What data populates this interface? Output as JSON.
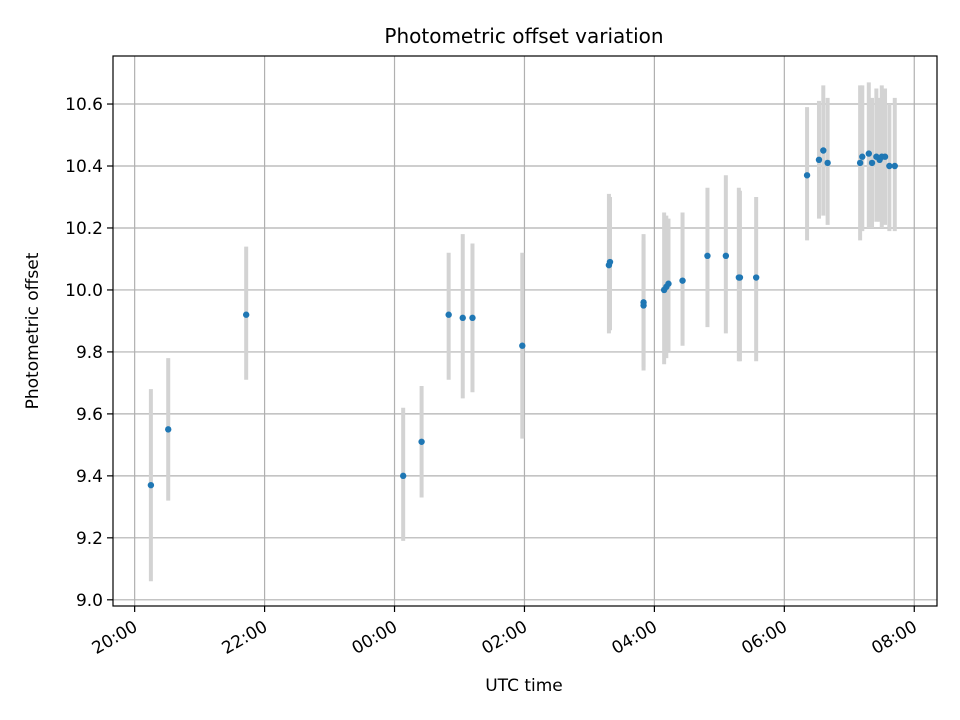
{
  "chart_data": {
    "type": "scatter",
    "title": "Photometric offset variation",
    "xlabel": "UTC time",
    "ylabel": "Photometric offset",
    "xlim": [
      "19:40",
      "08:21"
    ],
    "ylim": [
      8.98,
      10.755
    ],
    "x_ticks": [
      "20:00",
      "22:00",
      "00:00",
      "02:00",
      "04:00",
      "06:00",
      "08:00"
    ],
    "y_ticks": [
      "9.0",
      "9.2",
      "9.4",
      "9.6",
      "9.8",
      "10.0",
      "10.2",
      "10.4",
      "10.6"
    ],
    "grid": true,
    "colors": {
      "points": "#1f77b4",
      "error_bars": "#d3d3d3"
    },
    "points": [
      {
        "x": "20:15",
        "y": 9.37,
        "ylo": 9.06,
        "yhi": 9.68
      },
      {
        "x": "20:31",
        "y": 9.55,
        "ylo": 9.32,
        "yhi": 9.78
      },
      {
        "x": "21:43",
        "y": 9.92,
        "ylo": 9.71,
        "yhi": 10.14
      },
      {
        "x": "00:08",
        "y": 9.4,
        "ylo": 9.19,
        "yhi": 9.62
      },
      {
        "x": "00:25",
        "y": 9.51,
        "ylo": 9.33,
        "yhi": 9.69
      },
      {
        "x": "00:50",
        "y": 9.92,
        "ylo": 9.71,
        "yhi": 10.12
      },
      {
        "x": "01:03",
        "y": 9.91,
        "ylo": 9.65,
        "yhi": 10.18
      },
      {
        "x": "01:12",
        "y": 9.91,
        "ylo": 9.67,
        "yhi": 10.15
      },
      {
        "x": "01:58",
        "y": 9.82,
        "ylo": 9.52,
        "yhi": 10.12
      },
      {
        "x": "03:18",
        "y": 10.08,
        "ylo": 9.86,
        "yhi": 10.31
      },
      {
        "x": "03:19",
        "y": 10.09,
        "ylo": 9.87,
        "yhi": 10.3
      },
      {
        "x": "03:50",
        "y": 9.96,
        "ylo": 9.74,
        "yhi": 10.18
      },
      {
        "x": "03:50",
        "y": 9.95,
        "ylo": 9.75,
        "yhi": 10.16
      },
      {
        "x": "04:09",
        "y": 10.0,
        "ylo": 9.76,
        "yhi": 10.25
      },
      {
        "x": "04:11",
        "y": 10.01,
        "ylo": 9.78,
        "yhi": 10.24
      },
      {
        "x": "04:13",
        "y": 10.02,
        "ylo": 9.8,
        "yhi": 10.23
      },
      {
        "x": "04:26",
        "y": 10.03,
        "ylo": 9.82,
        "yhi": 10.25
      },
      {
        "x": "04:49",
        "y": 10.11,
        "ylo": 9.88,
        "yhi": 10.33
      },
      {
        "x": "05:06",
        "y": 10.11,
        "ylo": 9.86,
        "yhi": 10.37
      },
      {
        "x": "05:18",
        "y": 10.04,
        "ylo": 9.77,
        "yhi": 10.33
      },
      {
        "x": "05:19",
        "y": 10.04,
        "ylo": 9.77,
        "yhi": 10.32
      },
      {
        "x": "05:34",
        "y": 10.04,
        "ylo": 9.77,
        "yhi": 10.3
      },
      {
        "x": "06:21",
        "y": 10.37,
        "ylo": 10.16,
        "yhi": 10.59
      },
      {
        "x": "06:32",
        "y": 10.42,
        "ylo": 10.23,
        "yhi": 10.61
      },
      {
        "x": "06:36",
        "y": 10.45,
        "ylo": 10.24,
        "yhi": 10.66
      },
      {
        "x": "06:40",
        "y": 10.41,
        "ylo": 10.21,
        "yhi": 10.62
      },
      {
        "x": "07:10",
        "y": 10.41,
        "ylo": 10.16,
        "yhi": 10.66
      },
      {
        "x": "07:12",
        "y": 10.43,
        "ylo": 10.19,
        "yhi": 10.66
      },
      {
        "x": "07:18",
        "y": 10.44,
        "ylo": 10.2,
        "yhi": 10.67
      },
      {
        "x": "07:21",
        "y": 10.41,
        "ylo": 10.2,
        "yhi": 10.62
      },
      {
        "x": "07:25",
        "y": 10.43,
        "ylo": 10.22,
        "yhi": 10.65
      },
      {
        "x": "07:28",
        "y": 10.42,
        "ylo": 10.22,
        "yhi": 10.62
      },
      {
        "x": "07:30",
        "y": 10.43,
        "ylo": 10.2,
        "yhi": 10.66
      },
      {
        "x": "07:33",
        "y": 10.43,
        "ylo": 10.21,
        "yhi": 10.65
      },
      {
        "x": "07:37",
        "y": 10.4,
        "ylo": 10.19,
        "yhi": 10.6
      },
      {
        "x": "07:42",
        "y": 10.4,
        "ylo": 10.19,
        "yhi": 10.62
      }
    ]
  }
}
